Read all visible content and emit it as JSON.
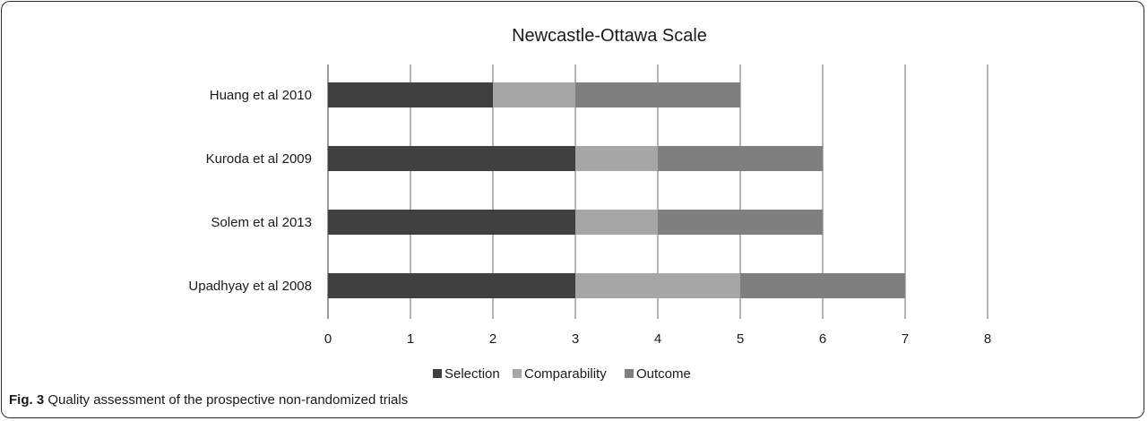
{
  "chart_data": {
    "type": "bar",
    "orientation": "horizontal",
    "stacked": true,
    "title": "Newcastle-Ottawa Scale",
    "categories": [
      "Huang et al 2010",
      "Kuroda et al 2009",
      "Solem et al 2013",
      "Upadhyay et al 2008"
    ],
    "series": [
      {
        "name": "Selection",
        "values": [
          2,
          3,
          3,
          3
        ],
        "color": "#404040"
      },
      {
        "name": "Comparability",
        "values": [
          1,
          1,
          1,
          2
        ],
        "color": "#a6a6a6"
      },
      {
        "name": "Outcome",
        "values": [
          2,
          2,
          2,
          2
        ],
        "color": "#7f7f7f"
      }
    ],
    "xlim": [
      0,
      8
    ],
    "xticks": [
      "0",
      "1",
      "2",
      "3",
      "4",
      "5",
      "6",
      "7",
      "8"
    ],
    "xlabel": "",
    "ylabel": "",
    "grid": "vertical",
    "legend_position": "bottom"
  },
  "caption": {
    "label": "Fig. 3",
    "text": "Quality assessment of the prospective non-randomized trials"
  }
}
